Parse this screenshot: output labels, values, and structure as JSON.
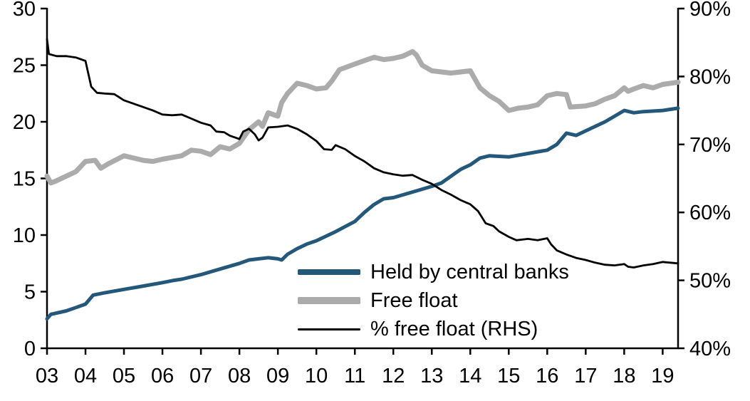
{
  "chart_data": {
    "type": "line",
    "title": "",
    "xlabel": "",
    "ylabel": "",
    "grid": false,
    "legend_position": "inside-bottom-center",
    "x_axis": {
      "min": 2003,
      "max": 2019.4,
      "tick_values": [
        2003,
        2004,
        2005,
        2006,
        2007,
        2008,
        2009,
        2010,
        2011,
        2012,
        2013,
        2014,
        2015,
        2016,
        2017,
        2018,
        2019
      ],
      "tick_labels": [
        "03",
        "04",
        "05",
        "06",
        "07",
        "08",
        "09",
        "10",
        "11",
        "12",
        "13",
        "14",
        "15",
        "16",
        "17",
        "18",
        "19"
      ]
    },
    "left_axis": {
      "min": 0,
      "max": 30,
      "tick_values": [
        0,
        5,
        10,
        15,
        20,
        25,
        30
      ],
      "tick_labels": [
        "0",
        "5",
        "10",
        "15",
        "20",
        "25",
        "30"
      ]
    },
    "right_axis": {
      "min": 40,
      "max": 90,
      "tick_values": [
        40,
        50,
        60,
        70,
        80,
        90
      ],
      "tick_labels": [
        "40%",
        "50%",
        "60%",
        "70%",
        "80%",
        "90%"
      ]
    },
    "series": [
      {
        "name": "Held by central banks",
        "axis": "left",
        "color": "#24587B",
        "stroke_width": 5,
        "points": [
          [
            2003.0,
            2.6
          ],
          [
            2003.1,
            3.0
          ],
          [
            2003.5,
            3.3
          ],
          [
            2003.75,
            3.6
          ],
          [
            2004.0,
            3.9
          ],
          [
            2004.2,
            4.7
          ],
          [
            2004.5,
            4.9
          ],
          [
            2005.0,
            5.2
          ],
          [
            2005.5,
            5.5
          ],
          [
            2006.0,
            5.8
          ],
          [
            2006.3,
            6.0
          ],
          [
            2006.5,
            6.1
          ],
          [
            2007.0,
            6.5
          ],
          [
            2007.5,
            7.0
          ],
          [
            2008.0,
            7.5
          ],
          [
            2008.25,
            7.8
          ],
          [
            2008.5,
            7.9
          ],
          [
            2008.75,
            8.0
          ],
          [
            2009.0,
            7.9
          ],
          [
            2009.1,
            7.8
          ],
          [
            2009.25,
            8.3
          ],
          [
            2009.5,
            8.8
          ],
          [
            2009.75,
            9.2
          ],
          [
            2010.0,
            9.5
          ],
          [
            2010.5,
            10.3
          ],
          [
            2011.0,
            11.2
          ],
          [
            2011.25,
            12.0
          ],
          [
            2011.5,
            12.7
          ],
          [
            2011.75,
            13.2
          ],
          [
            2012.0,
            13.3
          ],
          [
            2012.5,
            13.8
          ],
          [
            2013.0,
            14.3
          ],
          [
            2013.25,
            14.6
          ],
          [
            2013.5,
            15.2
          ],
          [
            2013.75,
            15.8
          ],
          [
            2014.0,
            16.2
          ],
          [
            2014.25,
            16.8
          ],
          [
            2014.5,
            17.0
          ],
          [
            2015.0,
            16.9
          ],
          [
            2015.5,
            17.2
          ],
          [
            2016.0,
            17.5
          ],
          [
            2016.25,
            18.0
          ],
          [
            2016.5,
            19.0
          ],
          [
            2016.75,
            18.8
          ],
          [
            2017.0,
            19.2
          ],
          [
            2017.5,
            20.0
          ],
          [
            2017.75,
            20.5
          ],
          [
            2018.0,
            21.0
          ],
          [
            2018.25,
            20.8
          ],
          [
            2018.5,
            20.9
          ],
          [
            2019.0,
            21.0
          ],
          [
            2019.4,
            21.2
          ]
        ]
      },
      {
        "name": "Free float",
        "axis": "left",
        "color": "#ABABAB",
        "stroke_width": 7,
        "points": [
          [
            2003.0,
            15.2
          ],
          [
            2003.1,
            14.6
          ],
          [
            2003.25,
            14.8
          ],
          [
            2003.5,
            15.2
          ],
          [
            2003.75,
            15.6
          ],
          [
            2004.0,
            16.5
          ],
          [
            2004.25,
            16.6
          ],
          [
            2004.4,
            15.9
          ],
          [
            2004.6,
            16.3
          ],
          [
            2005.0,
            17.0
          ],
          [
            2005.25,
            16.8
          ],
          [
            2005.5,
            16.6
          ],
          [
            2005.75,
            16.5
          ],
          [
            2006.0,
            16.7
          ],
          [
            2006.5,
            17.0
          ],
          [
            2006.75,
            17.5
          ],
          [
            2007.0,
            17.4
          ],
          [
            2007.25,
            17.1
          ],
          [
            2007.5,
            17.8
          ],
          [
            2007.75,
            17.6
          ],
          [
            2008.0,
            18.1
          ],
          [
            2008.25,
            19.3
          ],
          [
            2008.5,
            20.0
          ],
          [
            2008.6,
            19.6
          ],
          [
            2008.75,
            20.8
          ],
          [
            2009.0,
            20.5
          ],
          [
            2009.1,
            21.7
          ],
          [
            2009.25,
            22.5
          ],
          [
            2009.5,
            23.4
          ],
          [
            2009.75,
            23.2
          ],
          [
            2010.0,
            22.9
          ],
          [
            2010.25,
            23.0
          ],
          [
            2010.4,
            23.6
          ],
          [
            2010.6,
            24.6
          ],
          [
            2011.0,
            25.1
          ],
          [
            2011.25,
            25.4
          ],
          [
            2011.5,
            25.7
          ],
          [
            2011.75,
            25.5
          ],
          [
            2012.0,
            25.6
          ],
          [
            2012.25,
            25.8
          ],
          [
            2012.5,
            26.2
          ],
          [
            2012.6,
            25.9
          ],
          [
            2012.75,
            25.0
          ],
          [
            2013.0,
            24.5
          ],
          [
            2013.25,
            24.4
          ],
          [
            2013.5,
            24.3
          ],
          [
            2013.75,
            24.4
          ],
          [
            2014.0,
            24.5
          ],
          [
            2014.25,
            23.0
          ],
          [
            2014.5,
            22.3
          ],
          [
            2014.75,
            21.8
          ],
          [
            2015.0,
            21.0
          ],
          [
            2015.25,
            21.2
          ],
          [
            2015.5,
            21.3
          ],
          [
            2015.75,
            21.5
          ],
          [
            2016.0,
            22.3
          ],
          [
            2016.25,
            22.5
          ],
          [
            2016.5,
            22.4
          ],
          [
            2016.6,
            21.3
          ],
          [
            2017.0,
            21.4
          ],
          [
            2017.25,
            21.6
          ],
          [
            2017.5,
            22.0
          ],
          [
            2017.75,
            22.3
          ],
          [
            2018.0,
            23.0
          ],
          [
            2018.1,
            22.7
          ],
          [
            2018.25,
            22.9
          ],
          [
            2018.5,
            23.2
          ],
          [
            2018.75,
            23.0
          ],
          [
            2019.0,
            23.3
          ],
          [
            2019.4,
            23.5
          ]
        ]
      },
      {
        "name": "% free float (RHS)",
        "axis": "right",
        "color": "#000000",
        "stroke_width": 2.8,
        "points": [
          [
            2003.0,
            85.5
          ],
          [
            2003.05,
            83.3
          ],
          [
            2003.25,
            83.0
          ],
          [
            2003.5,
            83.0
          ],
          [
            2003.75,
            82.8
          ],
          [
            2004.0,
            82.3
          ],
          [
            2004.15,
            78.5
          ],
          [
            2004.3,
            77.6
          ],
          [
            2004.5,
            77.5
          ],
          [
            2004.75,
            77.4
          ],
          [
            2005.0,
            76.5
          ],
          [
            2005.25,
            76.0
          ],
          [
            2005.5,
            75.5
          ],
          [
            2005.75,
            75.0
          ],
          [
            2006.0,
            74.4
          ],
          [
            2006.25,
            74.3
          ],
          [
            2006.5,
            74.4
          ],
          [
            2006.75,
            73.8
          ],
          [
            2007.0,
            73.2
          ],
          [
            2007.25,
            72.8
          ],
          [
            2007.4,
            71.9
          ],
          [
            2007.6,
            71.8
          ],
          [
            2007.75,
            71.3
          ],
          [
            2008.0,
            70.8
          ],
          [
            2008.1,
            71.9
          ],
          [
            2008.25,
            72.3
          ],
          [
            2008.4,
            71.5
          ],
          [
            2008.5,
            70.6
          ],
          [
            2008.6,
            71.0
          ],
          [
            2008.75,
            72.5
          ],
          [
            2009.0,
            72.6
          ],
          [
            2009.25,
            72.8
          ],
          [
            2009.5,
            72.3
          ],
          [
            2009.75,
            71.5
          ],
          [
            2010.0,
            70.5
          ],
          [
            2010.2,
            69.3
          ],
          [
            2010.4,
            69.2
          ],
          [
            2010.5,
            69.9
          ],
          [
            2010.75,
            69.3
          ],
          [
            2011.0,
            68.3
          ],
          [
            2011.25,
            67.5
          ],
          [
            2011.5,
            66.5
          ],
          [
            2011.75,
            65.9
          ],
          [
            2012.0,
            65.6
          ],
          [
            2012.25,
            65.4
          ],
          [
            2012.5,
            65.5
          ],
          [
            2012.75,
            64.8
          ],
          [
            2013.0,
            64.2
          ],
          [
            2013.25,
            63.3
          ],
          [
            2013.5,
            62.6
          ],
          [
            2013.75,
            61.8
          ],
          [
            2014.0,
            61.2
          ],
          [
            2014.2,
            60.2
          ],
          [
            2014.4,
            58.4
          ],
          [
            2014.6,
            58.0
          ],
          [
            2014.75,
            57.2
          ],
          [
            2015.0,
            56.4
          ],
          [
            2015.2,
            55.9
          ],
          [
            2015.5,
            56.1
          ],
          [
            2015.75,
            55.9
          ],
          [
            2016.0,
            56.2
          ],
          [
            2016.1,
            55.3
          ],
          [
            2016.25,
            54.4
          ],
          [
            2016.5,
            53.8
          ],
          [
            2016.75,
            53.3
          ],
          [
            2017.0,
            53.0
          ],
          [
            2017.25,
            52.6
          ],
          [
            2017.5,
            52.3
          ],
          [
            2017.75,
            52.2
          ],
          [
            2018.0,
            52.4
          ],
          [
            2018.1,
            52.0
          ],
          [
            2018.25,
            51.9
          ],
          [
            2018.5,
            52.2
          ],
          [
            2018.75,
            52.4
          ],
          [
            2019.0,
            52.7
          ],
          [
            2019.2,
            52.6
          ],
          [
            2019.4,
            52.5
          ]
        ]
      }
    ]
  },
  "legend": {
    "items": [
      {
        "label": "Held by central banks"
      },
      {
        "label": "Free float"
      },
      {
        "label": "% free float (RHS)"
      }
    ]
  }
}
